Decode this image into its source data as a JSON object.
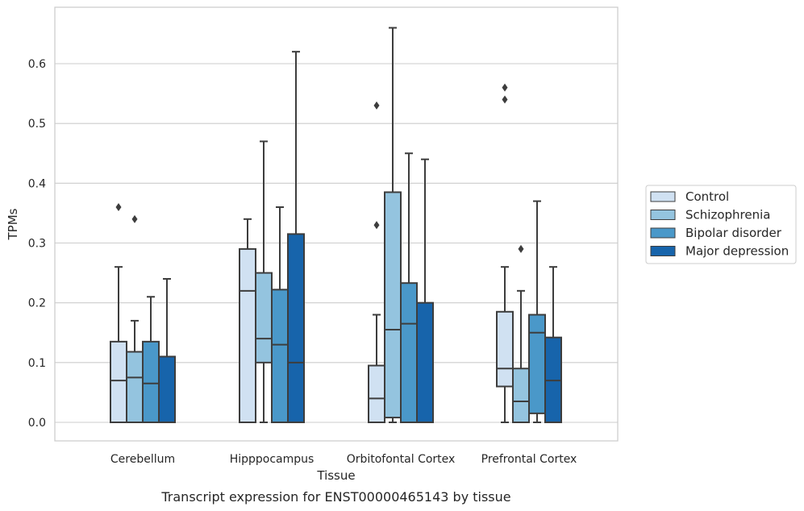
{
  "caption": "Transcript expression for ENST00000465143 by tissue",
  "chart_data": {
    "type": "boxplot",
    "xlabel": "Tissue",
    "ylabel": "TPMs",
    "ylim": [
      -0.032,
      0.692
    ],
    "yticks": [
      0.0,
      0.1,
      0.2,
      0.3,
      0.4,
      0.5,
      0.6
    ],
    "ytick_labels": [
      "0.0",
      "0.1",
      "0.2",
      "0.3",
      "0.4",
      "0.5",
      "0.6"
    ],
    "grid": "horizontal",
    "legend_position": "right",
    "categories": [
      "Cerebellum",
      "Hipppocampus",
      "Orbitofontal Cortex",
      "Prefrontal Cortex"
    ],
    "series": [
      {
        "name": "Control",
        "color": "#d0e1f2",
        "boxes": [
          {
            "whislo": 0.0,
            "q1": 0.0,
            "med": 0.07,
            "q3": 0.135,
            "whishi": 0.26,
            "fliers": [
              0.36
            ]
          },
          {
            "whislo": 0.0,
            "q1": 0.0,
            "med": 0.22,
            "q3": 0.29,
            "whishi": 0.34,
            "fliers": []
          },
          {
            "whislo": 0.0,
            "q1": 0.0,
            "med": 0.04,
            "q3": 0.095,
            "whishi": 0.18,
            "fliers": [
              0.33,
              0.53
            ]
          },
          {
            "whislo": 0.0,
            "q1": 0.06,
            "med": 0.09,
            "q3": 0.185,
            "whishi": 0.26,
            "fliers": [
              0.54,
              0.56
            ]
          }
        ]
      },
      {
        "name": "Schizophrenia",
        "color": "#94c4df",
        "boxes": [
          {
            "whislo": 0.0,
            "q1": 0.0,
            "med": 0.075,
            "q3": 0.118,
            "whishi": 0.17,
            "fliers": [
              0.34
            ]
          },
          {
            "whislo": 0.0,
            "q1": 0.1,
            "med": 0.14,
            "q3": 0.25,
            "whishi": 0.47,
            "fliers": []
          },
          {
            "whislo": 0.0,
            "q1": 0.008,
            "med": 0.155,
            "q3": 0.385,
            "whishi": 0.66,
            "fliers": []
          },
          {
            "whislo": 0.0,
            "q1": 0.0,
            "med": 0.035,
            "q3": 0.09,
            "whishi": 0.22,
            "fliers": [
              0.29
            ]
          }
        ]
      },
      {
        "name": "Bipolar disorder",
        "color": "#4a98c9",
        "boxes": [
          {
            "whislo": 0.0,
            "q1": 0.0,
            "med": 0.065,
            "q3": 0.135,
            "whishi": 0.21,
            "fliers": []
          },
          {
            "whislo": 0.0,
            "q1": 0.0,
            "med": 0.13,
            "q3": 0.222,
            "whishi": 0.36,
            "fliers": []
          },
          {
            "whislo": 0.0,
            "q1": 0.0,
            "med": 0.165,
            "q3": 0.233,
            "whishi": 0.45,
            "fliers": []
          },
          {
            "whislo": 0.0,
            "q1": 0.015,
            "med": 0.15,
            "q3": 0.18,
            "whishi": 0.37,
            "fliers": []
          }
        ]
      },
      {
        "name": "Major depression",
        "color": "#1764ab",
        "boxes": [
          {
            "whislo": 0.0,
            "q1": 0.0,
            "med": 0.0,
            "q3": 0.11,
            "whishi": 0.24,
            "fliers": []
          },
          {
            "whislo": 0.0,
            "q1": 0.0,
            "med": 0.1,
            "q3": 0.315,
            "whishi": 0.62,
            "fliers": []
          },
          {
            "whislo": 0.0,
            "q1": 0.0,
            "med": 0.0,
            "q3": 0.2,
            "whishi": 0.44,
            "fliers": []
          },
          {
            "whislo": 0.0,
            "q1": 0.0,
            "med": 0.07,
            "q3": 0.142,
            "whishi": 0.26,
            "fliers": []
          }
        ]
      }
    ]
  }
}
